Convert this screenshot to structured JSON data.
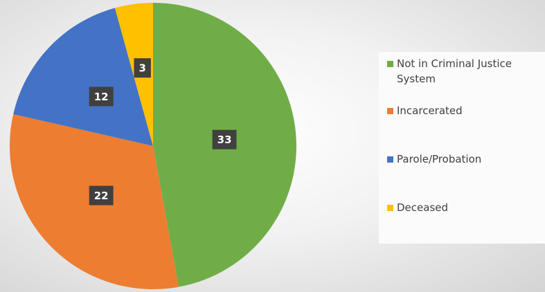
{
  "chart_data": {
    "type": "pie",
    "categories": [
      "Not in Criminal Justice System",
      "Incarcerated",
      "Parole/Probation",
      "Deceased"
    ],
    "values": [
      33,
      22,
      12,
      3
    ],
    "colors": [
      "#70ad47",
      "#ed7d31",
      "#4472c4",
      "#ffc000"
    ],
    "legend": "right"
  }
}
